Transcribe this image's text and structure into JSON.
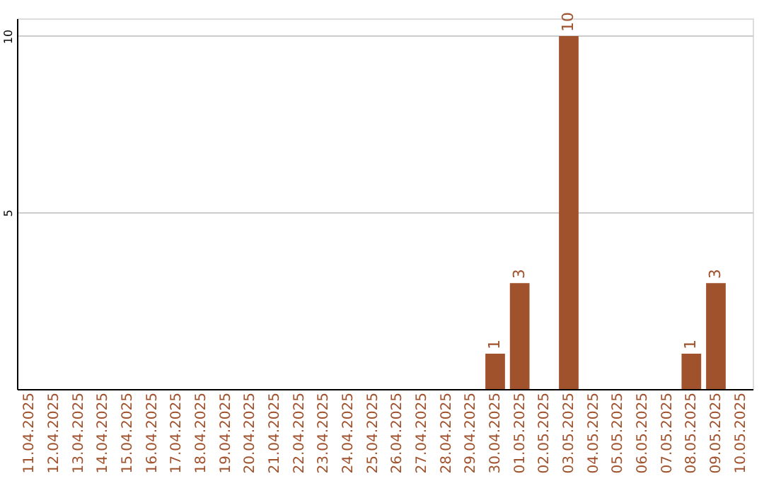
{
  "chart_data": {
    "type": "bar",
    "categories": [
      "11.04.2025",
      "12.04.2025",
      "13.04.2025",
      "14.04.2025",
      "15.04.2025",
      "16.04.2025",
      "17.04.2025",
      "18.04.2025",
      "19.04.2025",
      "20.04.2025",
      "21.04.2025",
      "22.04.2025",
      "23.04.2025",
      "24.04.2025",
      "25.04.2025",
      "26.04.2025",
      "27.04.2025",
      "28.04.2025",
      "29.04.2025",
      "30.04.2025",
      "01.05.2025",
      "02.05.2025",
      "03.05.2025",
      "04.05.2025",
      "05.05.2025",
      "06.05.2025",
      "07.05.2025",
      "08.05.2025",
      "09.05.2025",
      "10.05.2025"
    ],
    "values": [
      0,
      0,
      0,
      0,
      0,
      0,
      0,
      0,
      0,
      0,
      0,
      0,
      0,
      0,
      0,
      0,
      0,
      0,
      0,
      1,
      3,
      0,
      10,
      0,
      0,
      0,
      0,
      1,
      3,
      0
    ],
    "value_labels": [
      null,
      null,
      null,
      null,
      null,
      null,
      null,
      null,
      null,
      null,
      null,
      null,
      null,
      null,
      null,
      null,
      null,
      null,
      null,
      "1",
      "3",
      null,
      "10",
      null,
      null,
      null,
      null,
      "1",
      "3",
      null
    ],
    "color": "#a0522d",
    "ylim": [
      0,
      10.5
    ],
    "yticks": [
      5,
      10
    ],
    "grid": "y"
  }
}
